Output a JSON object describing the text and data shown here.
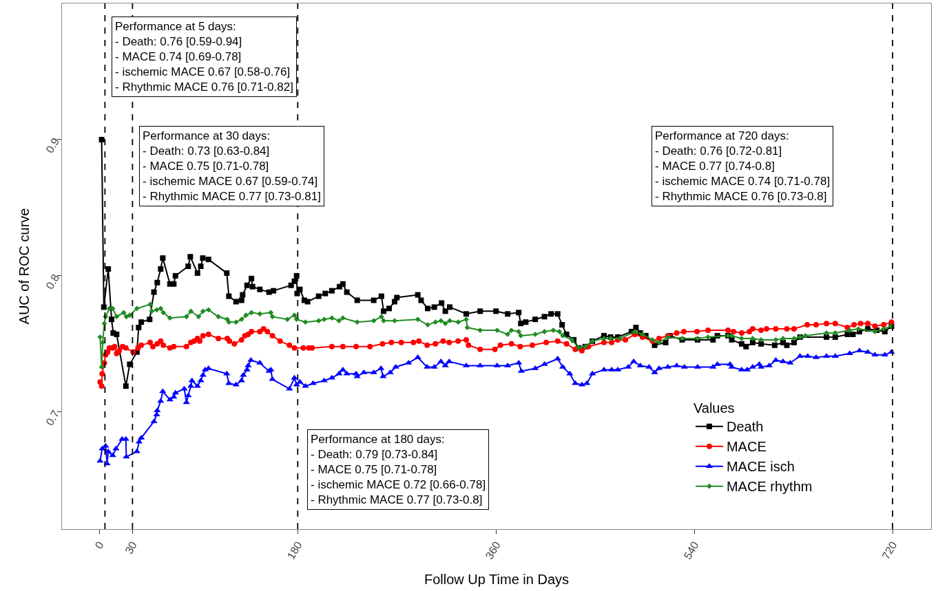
{
  "chart_data": {
    "type": "line",
    "xlabel": "Follow Up Time in Days",
    "ylabel": "AUC of ROC curve",
    "legend_title": "Values",
    "xlim": [
      -34,
      755
    ],
    "xticks": [
      0,
      30,
      180,
      360,
      540,
      720
    ],
    "ylim": [
      0.614,
      1.0
    ],
    "yticks": [
      0.7,
      0.8,
      0.9
    ],
    "legend": "bottom right",
    "line_style": "solid",
    "ref_lines": [
      {
        "axis": "x",
        "value": 5,
        "label": null,
        "color": "#000000",
        "line_style": "dashed"
      },
      {
        "axis": "x",
        "value": 30,
        "label": null,
        "color": "#000000",
        "line_style": "dashed"
      },
      {
        "axis": "x",
        "value": 180,
        "label": null,
        "color": "#000000",
        "line_style": "dashed"
      },
      {
        "axis": "x",
        "value": 720,
        "label": null,
        "color": "#000000",
        "line_style": "dashed"
      }
    ],
    "annotations": [
      "Performance at 5 days:\n- Death: 0.76 [0.59-0.94]\n- MACE 0.74 [0.69-0.78]\n- ischemic MACE 0.67 [0.58-0.76]\n- Rhythmic MACE 0.76 [0.71-0.82]",
      "Performance at 30 days:\n- Death: 0.73 [0.63-0.84]\n- MACE 0.75 [0.71-0.78]\n- ischemic MACE 0.67 [0.59-0.74]\n- Rhythmic MACE 0.77 [0.73-0.81]",
      "Performance at 720 days:\n- Death: 0.76 [0.72-0.81]\n- MACE 0.77 [0.74-0.8]\n- ischemic MACE 0.74 [0.71-0.78]\n- Rhythmic MACE 0.76 [0.73-0.8]",
      "Performance at 180 days:\n- Death: 0.79 [0.73-0.84]\n- MACE 0.75 [0.71-0.78]\n- ischemic MACE 0.72 [0.66-0.78]\n- Rhythmic MACE 0.77 [0.73-0.8]"
    ],
    "series": [
      {
        "name": "Death",
        "color": "#000000",
        "marker": "square",
        "x": [
          2,
          4,
          8,
          11,
          12.5,
          15.6,
          24,
          27.5,
          34,
          35.6,
          38,
          45.6,
          49.5,
          52.5,
          55.6,
          57.5,
          64,
          67.5,
          69,
          80.6,
          82.5,
          89,
          92,
          93.8,
          99,
          115.6,
          117.5,
          124,
          129,
          130,
          134,
          138,
          139,
          145.6,
          154,
          158,
          174,
          177,
          179,
          179.5,
          182,
          186,
          189,
          199,
          205,
          211,
          218,
          221,
          224.6,
          234,
          249,
          256,
          258,
          263,
          268,
          270,
          289,
          292,
          298,
          304,
          310.6,
          314,
          318,
          333,
          345.6,
          360,
          370.6,
          380.6,
          382.5,
          387,
          395.6,
          404,
          410,
          416,
          420,
          424,
          430.6,
          435,
          441,
          447.5,
          458,
          464,
          470.6,
          483,
          487,
          491,
          496,
          504,
          514,
          518,
          529,
          543,
          557,
          561,
          570.6,
          574,
          583,
          587,
          593,
          600.6,
          613,
          620.6,
          624,
          630.6,
          636,
          660,
          668,
          679,
          684,
          690,
          697.5,
          705.6,
          713,
          719
        ],
        "values": [
          0.9,
          0.777,
          0.805,
          0.768,
          0.758,
          0.757,
          0.719,
          0.735,
          0.744,
          0.762,
          0.766,
          0.768,
          0.788,
          0.795,
          0.805,
          0.813,
          0.794,
          0.794,
          0.8,
          0.807,
          0.814,
          0.802,
          0.807,
          0.813,
          0.812,
          0.802,
          0.785,
          0.781,
          0.782,
          0.786,
          0.793,
          0.798,
          0.792,
          0.79,
          0.788,
          0.789,
          0.793,
          0.796,
          0.8,
          0.787,
          0.79,
          0.782,
          0.781,
          0.785,
          0.787,
          0.789,
          0.792,
          0.794,
          0.788,
          0.782,
          0.782,
          0.785,
          0.774,
          0.776,
          0.781,
          0.784,
          0.786,
          0.782,
          0.776,
          0.777,
          0.78,
          0.774,
          0.777,
          0.772,
          0.774,
          0.774,
          0.772,
          0.773,
          0.765,
          0.766,
          0.768,
          0.77,
          0.772,
          0.772,
          0.764,
          0.757,
          0.753,
          0.747,
          0.748,
          0.752,
          0.756,
          0.755,
          0.755,
          0.759,
          0.762,
          0.758,
          0.756,
          0.749,
          0.751,
          0.756,
          0.753,
          0.753,
          0.753,
          0.756,
          0.756,
          0.753,
          0.75,
          0.748,
          0.751,
          0.75,
          0.749,
          0.751,
          0.749,
          0.751,
          0.755,
          0.755,
          0.755,
          0.757,
          0.757,
          0.759,
          0.761,
          0.76,
          0.759,
          0.763
        ]
      },
      {
        "name": "MACE",
        "color": "#ff0000",
        "marker": "circle",
        "x": [
          0.6,
          2,
          2.5,
          4.4,
          5.6,
          7.5,
          9,
          12,
          13.8,
          15.6,
          18,
          21,
          24,
          30.6,
          35,
          38,
          46,
          48.5,
          52.5,
          55.6,
          58,
          64,
          67.5,
          79,
          83,
          86,
          89,
          91,
          94,
          99,
          108,
          116,
          118,
          122.5,
          129,
          132,
          135,
          138,
          145.6,
          149,
          152.5,
          157,
          164,
          172.5,
          177,
          185,
          190,
          193,
          211,
          221,
          233,
          245.6,
          257,
          265,
          274,
          285,
          290,
          297.5,
          305,
          312,
          317.5,
          325.6,
          333,
          335,
          345.6,
          359,
          364,
          374,
          382,
          393,
          405.6,
          416,
          424,
          432,
          438,
          444,
          458,
          465,
          470.6,
          477.5,
          486,
          493,
          502,
          508,
          516,
          524,
          530.6,
          542.5,
          552.5,
          570.6,
          575.6,
          583,
          590,
          593,
          600.6,
          605.6,
          614,
          624,
          630.6,
          642.5,
          650.6,
          660,
          668,
          679,
          685,
          691,
          697.5,
          704,
          712,
          719
        ],
        "values": [
          0.722,
          0.719,
          0.728,
          0.736,
          0.742,
          0.744,
          0.747,
          0.747,
          0.748,
          0.743,
          0.745,
          0.748,
          0.747,
          0.744,
          0.747,
          0.749,
          0.751,
          0.748,
          0.75,
          0.752,
          0.749,
          0.747,
          0.748,
          0.748,
          0.751,
          0.752,
          0.754,
          0.752,
          0.756,
          0.757,
          0.754,
          0.754,
          0.752,
          0.75,
          0.753,
          0.756,
          0.757,
          0.759,
          0.759,
          0.761,
          0.759,
          0.756,
          0.752,
          0.749,
          0.747,
          0.747,
          0.747,
          0.747,
          0.748,
          0.748,
          0.748,
          0.748,
          0.75,
          0.751,
          0.751,
          0.751,
          0.752,
          0.749,
          0.75,
          0.752,
          0.751,
          0.752,
          0.753,
          0.749,
          0.746,
          0.746,
          0.749,
          0.75,
          0.748,
          0.749,
          0.751,
          0.752,
          0.75,
          0.746,
          0.745,
          0.748,
          0.751,
          0.751,
          0.753,
          0.753,
          0.757,
          0.755,
          0.752,
          0.754,
          0.756,
          0.758,
          0.759,
          0.759,
          0.76,
          0.76,
          0.759,
          0.758,
          0.759,
          0.761,
          0.76,
          0.761,
          0.761,
          0.761,
          0.761,
          0.764,
          0.764,
          0.765,
          0.765,
          0.762,
          0.764,
          0.765,
          0.765,
          0.763,
          0.764,
          0.766
        ]
      },
      {
        "name": "MACE isch",
        "color": "#0000ff",
        "marker": "triangle",
        "x": [
          0.6,
          2.5,
          5.6,
          7,
          8,
          12,
          15,
          20.6,
          24,
          24.4,
          34,
          36,
          38,
          49.5,
          52,
          52.5,
          55.6,
          57.5,
          64,
          67.5,
          69,
          77,
          79,
          80.6,
          83,
          84,
          89,
          92,
          94,
          96,
          99,
          115.6,
          117.5,
          124,
          129,
          130.6,
          134,
          135,
          137.5,
          145.6,
          154,
          155.6,
          157,
          172.5,
          177,
          179,
          182,
          187,
          194,
          204,
          211,
          217.5,
          221,
          224.6,
          233,
          234,
          240,
          249,
          255.6,
          257.5,
          264,
          269,
          280.6,
          289,
          297.5,
          304,
          310,
          314,
          317.5,
          333,
          345.6,
          361,
          370.6,
          380.6,
          383,
          395.6,
          404,
          416,
          420.6,
          427,
          432,
          438,
          442.5,
          447.5,
          458,
          465,
          470.6,
          480,
          485,
          491,
          499,
          504,
          508,
          516,
          524,
          531,
          543,
          557,
          561,
          572.5,
          574,
          583,
          588,
          593,
          599,
          600.6,
          608,
          614,
          620.6,
          627,
          636,
          643,
          650.6,
          660,
          668,
          681,
          690,
          697.5,
          704,
          713,
          719
        ],
        "values": [
          0.664,
          0.673,
          0.675,
          0.662,
          0.671,
          0.668,
          0.673,
          0.68,
          0.68,
          0.667,
          0.671,
          0.678,
          0.681,
          0.693,
          0.698,
          0.701,
          0.708,
          0.715,
          0.709,
          0.711,
          0.714,
          0.717,
          0.707,
          0.712,
          0.719,
          0.723,
          0.719,
          0.723,
          0.727,
          0.731,
          0.732,
          0.728,
          0.721,
          0.72,
          0.723,
          0.727,
          0.731,
          0.734,
          0.738,
          0.736,
          0.73,
          0.731,
          0.724,
          0.717,
          0.725,
          0.72,
          0.722,
          0.719,
          0.721,
          0.723,
          0.725,
          0.728,
          0.731,
          0.728,
          0.728,
          0.726,
          0.729,
          0.729,
          0.732,
          0.726,
          0.729,
          0.733,
          0.736,
          0.74,
          0.733,
          0.733,
          0.737,
          0.734,
          0.737,
          0.734,
          0.734,
          0.734,
          0.734,
          0.736,
          0.73,
          0.732,
          0.735,
          0.739,
          0.733,
          0.728,
          0.721,
          0.72,
          0.721,
          0.728,
          0.731,
          0.731,
          0.731,
          0.733,
          0.737,
          0.734,
          0.733,
          0.729,
          0.732,
          0.733,
          0.734,
          0.733,
          0.733,
          0.733,
          0.735,
          0.735,
          0.733,
          0.731,
          0.731,
          0.733,
          0.735,
          0.733,
          0.734,
          0.738,
          0.737,
          0.736,
          0.741,
          0.741,
          0.74,
          0.741,
          0.741,
          0.743,
          0.745,
          0.744,
          0.742,
          0.742,
          0.744
        ]
      },
      {
        "name": "MACE rhythm",
        "color": "#228b22",
        "marker": "diamond",
        "x": [
          0.6,
          2,
          3,
          4.4,
          5.6,
          9,
          12,
          15.6,
          22,
          24.4,
          27.5,
          34,
          46,
          47.5,
          52,
          55.6,
          58,
          64,
          79,
          83,
          90,
          94,
          99,
          108,
          116,
          117.5,
          124,
          129,
          133,
          138,
          145.6,
          155.6,
          157,
          170.6,
          177,
          179,
          187,
          199,
          204,
          211,
          217.5,
          221,
          234,
          249,
          256,
          258,
          268,
          289,
          298,
          305,
          310,
          314,
          318,
          325.6,
          333,
          334,
          345.6,
          361,
          370.6,
          374,
          380.6,
          382.5,
          395.6,
          404,
          412,
          417.5,
          420.6,
          429,
          435,
          441,
          447.5,
          458,
          464,
          472.5,
          486,
          493,
          502,
          508,
          516,
          529,
          543,
          552.5,
          570.6,
          574,
          583,
          593,
          600.6,
          614,
          620.6,
          630.6,
          636,
          641,
          660,
          668,
          681,
          689,
          704,
          712,
          719
        ],
        "values": [
          0.755,
          0.733,
          0.751,
          0.765,
          0.77,
          0.776,
          0.776,
          0.77,
          0.773,
          0.77,
          0.771,
          0.776,
          0.779,
          0.774,
          0.775,
          0.776,
          0.773,
          0.769,
          0.77,
          0.774,
          0.77,
          0.774,
          0.775,
          0.77,
          0.768,
          0.766,
          0.766,
          0.768,
          0.771,
          0.773,
          0.772,
          0.773,
          0.77,
          0.768,
          0.771,
          0.768,
          0.766,
          0.767,
          0.768,
          0.769,
          0.767,
          0.769,
          0.766,
          0.767,
          0.77,
          0.767,
          0.767,
          0.768,
          0.764,
          0.766,
          0.767,
          0.765,
          0.767,
          0.766,
          0.768,
          0.762,
          0.76,
          0.76,
          0.757,
          0.76,
          0.759,
          0.756,
          0.757,
          0.759,
          0.76,
          0.759,
          0.756,
          0.753,
          0.747,
          0.748,
          0.752,
          0.754,
          0.754,
          0.754,
          0.759,
          0.757,
          0.753,
          0.751,
          0.755,
          0.754,
          0.754,
          0.755,
          0.756,
          0.756,
          0.754,
          0.754,
          0.753,
          0.753,
          0.754,
          0.754,
          0.755,
          0.756,
          0.758,
          0.758,
          0.76,
          0.761,
          0.759,
          0.761,
          0.763
        ]
      }
    ]
  }
}
